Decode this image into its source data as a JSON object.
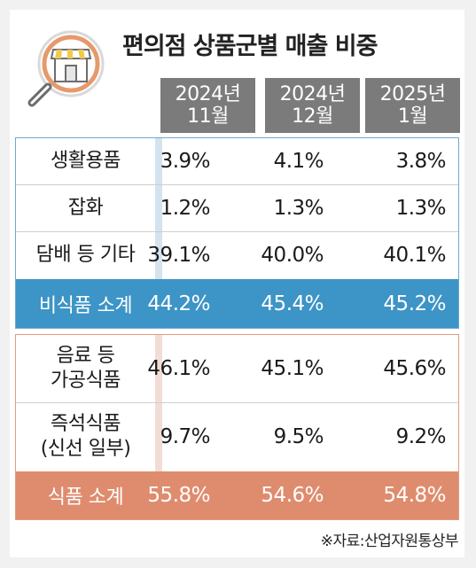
{
  "title": "편의점 상품군별 매출 비중",
  "columns": [
    {
      "line1": "2024년",
      "line2": "11월"
    },
    {
      "line1": "2024년",
      "line2": "12월"
    },
    {
      "line1": "2025년",
      "line2": "1월"
    }
  ],
  "sections": [
    {
      "rows": [
        {
          "label": "생활용품",
          "values": [
            "3.9%",
            "4.1%",
            "3.8%"
          ]
        },
        {
          "label": "잡화",
          "values": [
            "1.2%",
            "1.3%",
            "1.3%"
          ]
        },
        {
          "label": "담배 등 기타",
          "values": [
            "39.1%",
            "40.0%",
            "40.1%"
          ]
        }
      ],
      "subtotal": {
        "label": "비식품 소계",
        "values": [
          "44.2%",
          "45.4%",
          "45.2%"
        ],
        "color": "#3d94c6"
      }
    },
    {
      "rows": [
        {
          "label_line1": "음료 등",
          "label_line2": "가공식품",
          "values": [
            "46.1%",
            "45.1%",
            "45.6%"
          ]
        },
        {
          "label_line1": "즉석식품",
          "label_line2": "(신선 일부)",
          "values": [
            "9.7%",
            "9.5%",
            "9.2%"
          ]
        }
      ],
      "subtotal": {
        "label": "식품 소계",
        "values": [
          "55.8%",
          "54.6%",
          "54.8%"
        ],
        "color": "#df8c6e"
      }
    }
  ],
  "source": "※자료:산업자원통상부",
  "icons": {
    "logo": "store-magnifier-icon"
  },
  "chart_data": {
    "type": "table",
    "title": "편의점 상품군별 매출 비중",
    "categories": [
      "2024년 11월",
      "2024년 12월",
      "2025년 1월"
    ],
    "series": [
      {
        "name": "생활용품",
        "values": [
          3.9,
          4.1,
          3.8
        ]
      },
      {
        "name": "잡화",
        "values": [
          1.2,
          1.3,
          1.3
        ]
      },
      {
        "name": "담배 등 기타",
        "values": [
          39.1,
          40.0,
          40.1
        ]
      },
      {
        "name": "비식품 소계",
        "values": [
          44.2,
          45.4,
          45.2
        ]
      },
      {
        "name": "음료 등 가공식품",
        "values": [
          46.1,
          45.1,
          45.6
        ]
      },
      {
        "name": "즉석식품 (신선 일부)",
        "values": [
          9.7,
          9.5,
          9.2
        ]
      },
      {
        "name": "식품 소계",
        "values": [
          55.8,
          54.6,
          54.8
        ]
      }
    ]
  }
}
